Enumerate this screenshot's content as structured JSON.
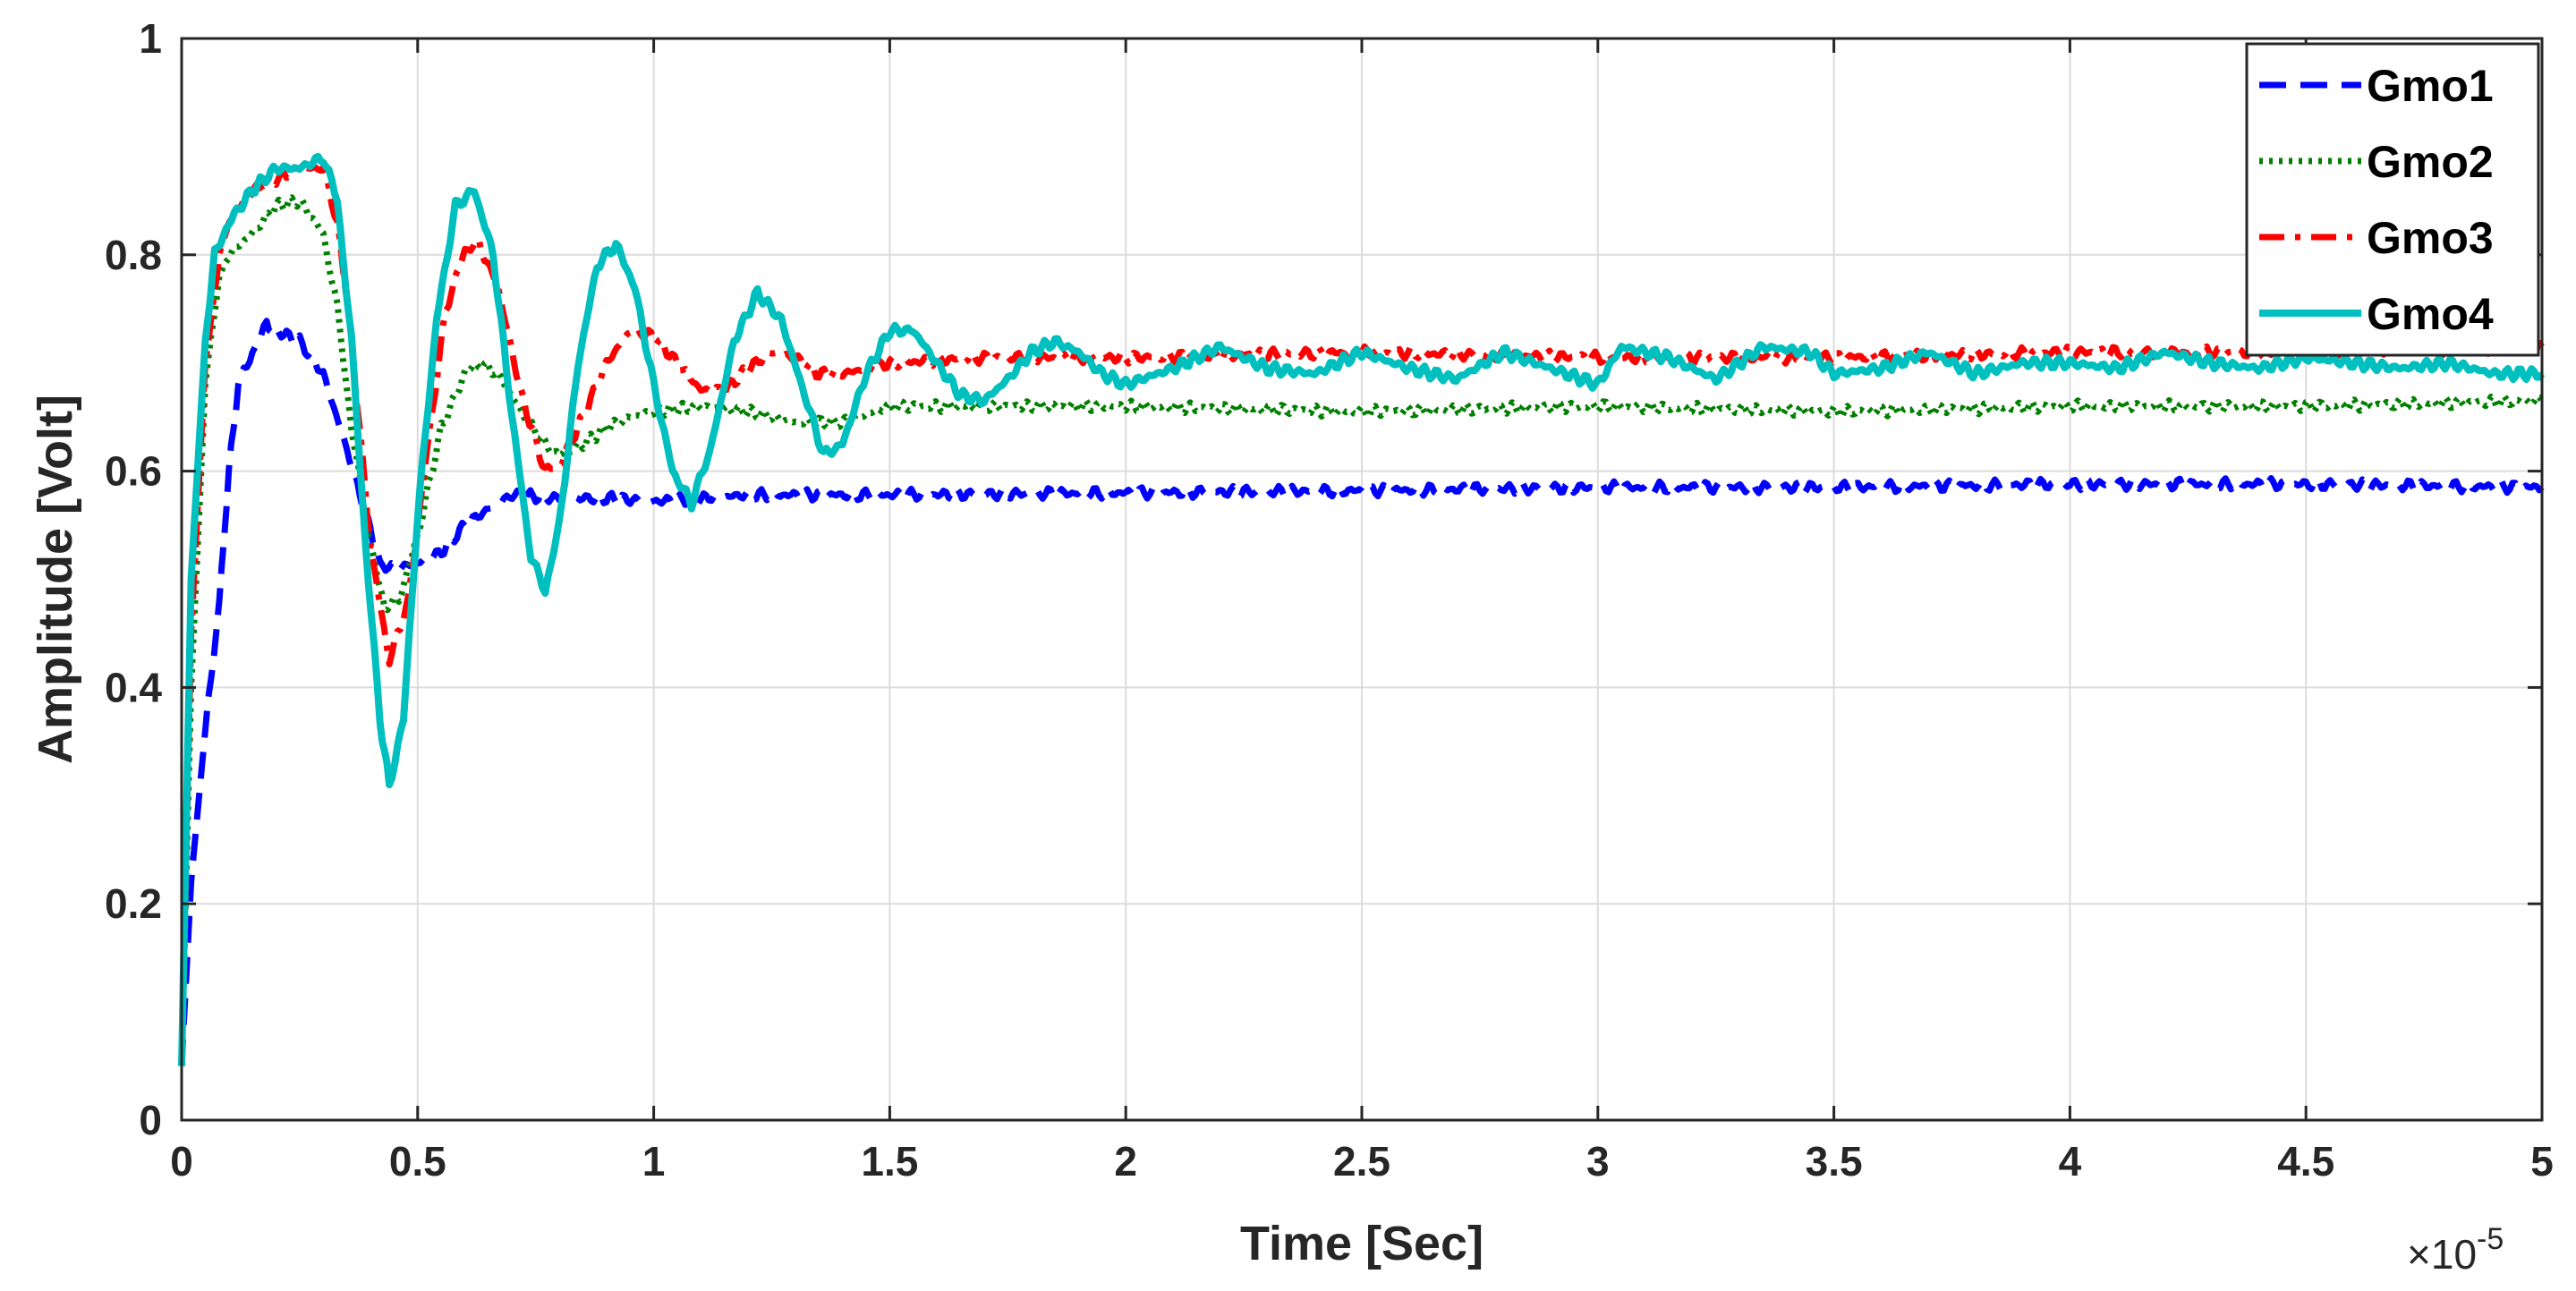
{
  "chart_data": {
    "type": "line",
    "title": "",
    "xlabel": "Time [Sec]",
    "ylabel": "Amplitude [Volt]",
    "x_exponent_label": "×10",
    "x_exponent_power": "-5",
    "xlim": [
      0,
      5
    ],
    "ylim": [
      0,
      1
    ],
    "x_ticks": [
      0,
      0.5,
      1,
      1.5,
      2,
      2.5,
      3,
      3.5,
      4,
      4.5,
      5
    ],
    "x_tick_labels": [
      "0",
      "0.5",
      "1",
      "1.5",
      "2",
      "2.5",
      "3",
      "3.5",
      "4",
      "4.5",
      "5"
    ],
    "y_ticks": [
      0,
      0.2,
      0.4,
      0.6,
      0.8,
      1
    ],
    "y_tick_labels": [
      "0",
      "0.2",
      "0.4",
      "0.6",
      "0.8",
      "1"
    ],
    "grid": true,
    "legend_position": "top-right",
    "series": [
      {
        "name": "Gmo1",
        "color": "#0000ff",
        "style": "dashed",
        "points": [
          [
            0,
            0.05
          ],
          [
            0.02,
            0.22
          ],
          [
            0.05,
            0.36
          ],
          [
            0.08,
            0.48
          ],
          [
            0.1,
            0.6
          ],
          [
            0.12,
            0.68
          ],
          [
            0.15,
            0.71
          ],
          [
            0.18,
            0.735
          ],
          [
            0.2,
            0.73
          ],
          [
            0.25,
            0.72
          ],
          [
            0.3,
            0.69
          ],
          [
            0.35,
            0.62
          ],
          [
            0.4,
            0.545
          ],
          [
            0.42,
            0.515
          ],
          [
            0.45,
            0.51
          ],
          [
            0.5,
            0.515
          ],
          [
            0.55,
            0.525
          ],
          [
            0.6,
            0.55
          ],
          [
            0.65,
            0.565
          ],
          [
            0.7,
            0.578
          ],
          [
            0.8,
            0.575
          ],
          [
            0.9,
            0.575
          ],
          [
            1.0,
            0.572
          ],
          [
            1.1,
            0.575
          ],
          [
            1.2,
            0.578
          ],
          [
            1.5,
            0.578
          ],
          [
            2.0,
            0.58
          ],
          [
            2.5,
            0.582
          ],
          [
            3.0,
            0.585
          ],
          [
            3.5,
            0.585
          ],
          [
            4.0,
            0.588
          ],
          [
            4.5,
            0.588
          ],
          [
            5.0,
            0.585
          ]
        ]
      },
      {
        "name": "Gmo2",
        "color": "#008000",
        "style": "dotted",
        "points": [
          [
            0,
            0.05
          ],
          [
            0.02,
            0.4
          ],
          [
            0.05,
            0.68
          ],
          [
            0.08,
            0.78
          ],
          [
            0.1,
            0.8
          ],
          [
            0.15,
            0.82
          ],
          [
            0.2,
            0.845
          ],
          [
            0.25,
            0.85
          ],
          [
            0.3,
            0.82
          ],
          [
            0.33,
            0.75
          ],
          [
            0.36,
            0.64
          ],
          [
            0.4,
            0.53
          ],
          [
            0.43,
            0.475
          ],
          [
            0.46,
            0.48
          ],
          [
            0.5,
            0.54
          ],
          [
            0.55,
            0.64
          ],
          [
            0.6,
            0.69
          ],
          [
            0.63,
            0.7
          ],
          [
            0.67,
            0.69
          ],
          [
            0.72,
            0.655
          ],
          [
            0.77,
            0.625
          ],
          [
            0.8,
            0.615
          ],
          [
            0.85,
            0.625
          ],
          [
            0.9,
            0.64
          ],
          [
            0.95,
            0.65
          ],
          [
            1.0,
            0.655
          ],
          [
            1.1,
            0.66
          ],
          [
            1.2,
            0.655
          ],
          [
            1.3,
            0.645
          ],
          [
            1.4,
            0.645
          ],
          [
            1.5,
            0.66
          ],
          [
            1.7,
            0.66
          ],
          [
            2.0,
            0.66
          ],
          [
            2.5,
            0.655
          ],
          [
            3.0,
            0.66
          ],
          [
            3.5,
            0.655
          ],
          [
            4.0,
            0.66
          ],
          [
            4.5,
            0.66
          ],
          [
            5.0,
            0.665
          ]
        ]
      },
      {
        "name": "Gmo3",
        "color": "#ff0000",
        "style": "dashdot",
        "points": [
          [
            0,
            0.05
          ],
          [
            0.02,
            0.45
          ],
          [
            0.05,
            0.7
          ],
          [
            0.08,
            0.8
          ],
          [
            0.1,
            0.83
          ],
          [
            0.15,
            0.86
          ],
          [
            0.2,
            0.87
          ],
          [
            0.25,
            0.88
          ],
          [
            0.3,
            0.88
          ],
          [
            0.33,
            0.83
          ],
          [
            0.36,
            0.72
          ],
          [
            0.4,
            0.53
          ],
          [
            0.44,
            0.425
          ],
          [
            0.48,
            0.48
          ],
          [
            0.52,
            0.62
          ],
          [
            0.56,
            0.75
          ],
          [
            0.6,
            0.805
          ],
          [
            0.63,
            0.81
          ],
          [
            0.67,
            0.77
          ],
          [
            0.72,
            0.67
          ],
          [
            0.77,
            0.6
          ],
          [
            0.8,
            0.605
          ],
          [
            0.85,
            0.65
          ],
          [
            0.9,
            0.7
          ],
          [
            0.95,
            0.73
          ],
          [
            1.0,
            0.725
          ],
          [
            1.05,
            0.7
          ],
          [
            1.1,
            0.675
          ],
          [
            1.15,
            0.675
          ],
          [
            1.2,
            0.695
          ],
          [
            1.25,
            0.71
          ],
          [
            1.3,
            0.705
          ],
          [
            1.35,
            0.69
          ],
          [
            1.4,
            0.69
          ],
          [
            1.5,
            0.7
          ],
          [
            1.7,
            0.705
          ],
          [
            2.0,
            0.705
          ],
          [
            2.5,
            0.71
          ],
          [
            3.0,
            0.705
          ],
          [
            3.5,
            0.705
          ],
          [
            4.0,
            0.71
          ],
          [
            4.5,
            0.71
          ],
          [
            5.0,
            0.715
          ]
        ]
      },
      {
        "name": "Gmo4",
        "color": "#00bfbf",
        "style": "solid",
        "points": [
          [
            0,
            0.05
          ],
          [
            0.02,
            0.5
          ],
          [
            0.05,
            0.72
          ],
          [
            0.07,
            0.8
          ],
          [
            0.1,
            0.83
          ],
          [
            0.15,
            0.86
          ],
          [
            0.2,
            0.88
          ],
          [
            0.25,
            0.88
          ],
          [
            0.3,
            0.89
          ],
          [
            0.33,
            0.85
          ],
          [
            0.36,
            0.72
          ],
          [
            0.39,
            0.53
          ],
          [
            0.42,
            0.37
          ],
          [
            0.44,
            0.31
          ],
          [
            0.47,
            0.37
          ],
          [
            0.5,
            0.56
          ],
          [
            0.54,
            0.74
          ],
          [
            0.58,
            0.845
          ],
          [
            0.62,
            0.86
          ],
          [
            0.66,
            0.8
          ],
          [
            0.7,
            0.65
          ],
          [
            0.74,
            0.52
          ],
          [
            0.77,
            0.49
          ],
          [
            0.8,
            0.55
          ],
          [
            0.84,
            0.7
          ],
          [
            0.88,
            0.79
          ],
          [
            0.92,
            0.81
          ],
          [
            0.96,
            0.77
          ],
          [
            1.0,
            0.68
          ],
          [
            1.04,
            0.6
          ],
          [
            1.08,
            0.57
          ],
          [
            1.12,
            0.62
          ],
          [
            1.17,
            0.72
          ],
          [
            1.22,
            0.765
          ],
          [
            1.27,
            0.74
          ],
          [
            1.32,
            0.67
          ],
          [
            1.36,
            0.615
          ],
          [
            1.4,
            0.625
          ],
          [
            1.45,
            0.69
          ],
          [
            1.5,
            0.73
          ],
          [
            1.55,
            0.73
          ],
          [
            1.6,
            0.7
          ],
          [
            1.65,
            0.67
          ],
          [
            1.7,
            0.665
          ],
          [
            1.75,
            0.685
          ],
          [
            1.8,
            0.71
          ],
          [
            1.85,
            0.72
          ],
          [
            1.9,
            0.71
          ],
          [
            1.95,
            0.69
          ],
          [
            2.0,
            0.68
          ],
          [
            2.1,
            0.695
          ],
          [
            2.2,
            0.715
          ],
          [
            2.3,
            0.695
          ],
          [
            2.4,
            0.69
          ],
          [
            2.5,
            0.71
          ],
          [
            2.6,
            0.695
          ],
          [
            2.7,
            0.685
          ],
          [
            2.8,
            0.71
          ],
          [
            2.9,
            0.695
          ],
          [
            3.0,
            0.68
          ],
          [
            3.05,
            0.715
          ],
          [
            3.15,
            0.705
          ],
          [
            3.25,
            0.685
          ],
          [
            3.35,
            0.715
          ],
          [
            3.45,
            0.71
          ],
          [
            3.5,
            0.69
          ],
          [
            3.6,
            0.695
          ],
          [
            3.7,
            0.71
          ],
          [
            3.8,
            0.69
          ],
          [
            3.9,
            0.7
          ],
          [
            4.0,
            0.7
          ],
          [
            4.1,
            0.695
          ],
          [
            4.2,
            0.71
          ],
          [
            4.3,
            0.7
          ],
          [
            4.4,
            0.695
          ],
          [
            4.5,
            0.705
          ],
          [
            4.6,
            0.7
          ],
          [
            4.7,
            0.695
          ],
          [
            4.8,
            0.7
          ],
          [
            4.9,
            0.69
          ],
          [
            5.0,
            0.69
          ]
        ]
      }
    ]
  }
}
